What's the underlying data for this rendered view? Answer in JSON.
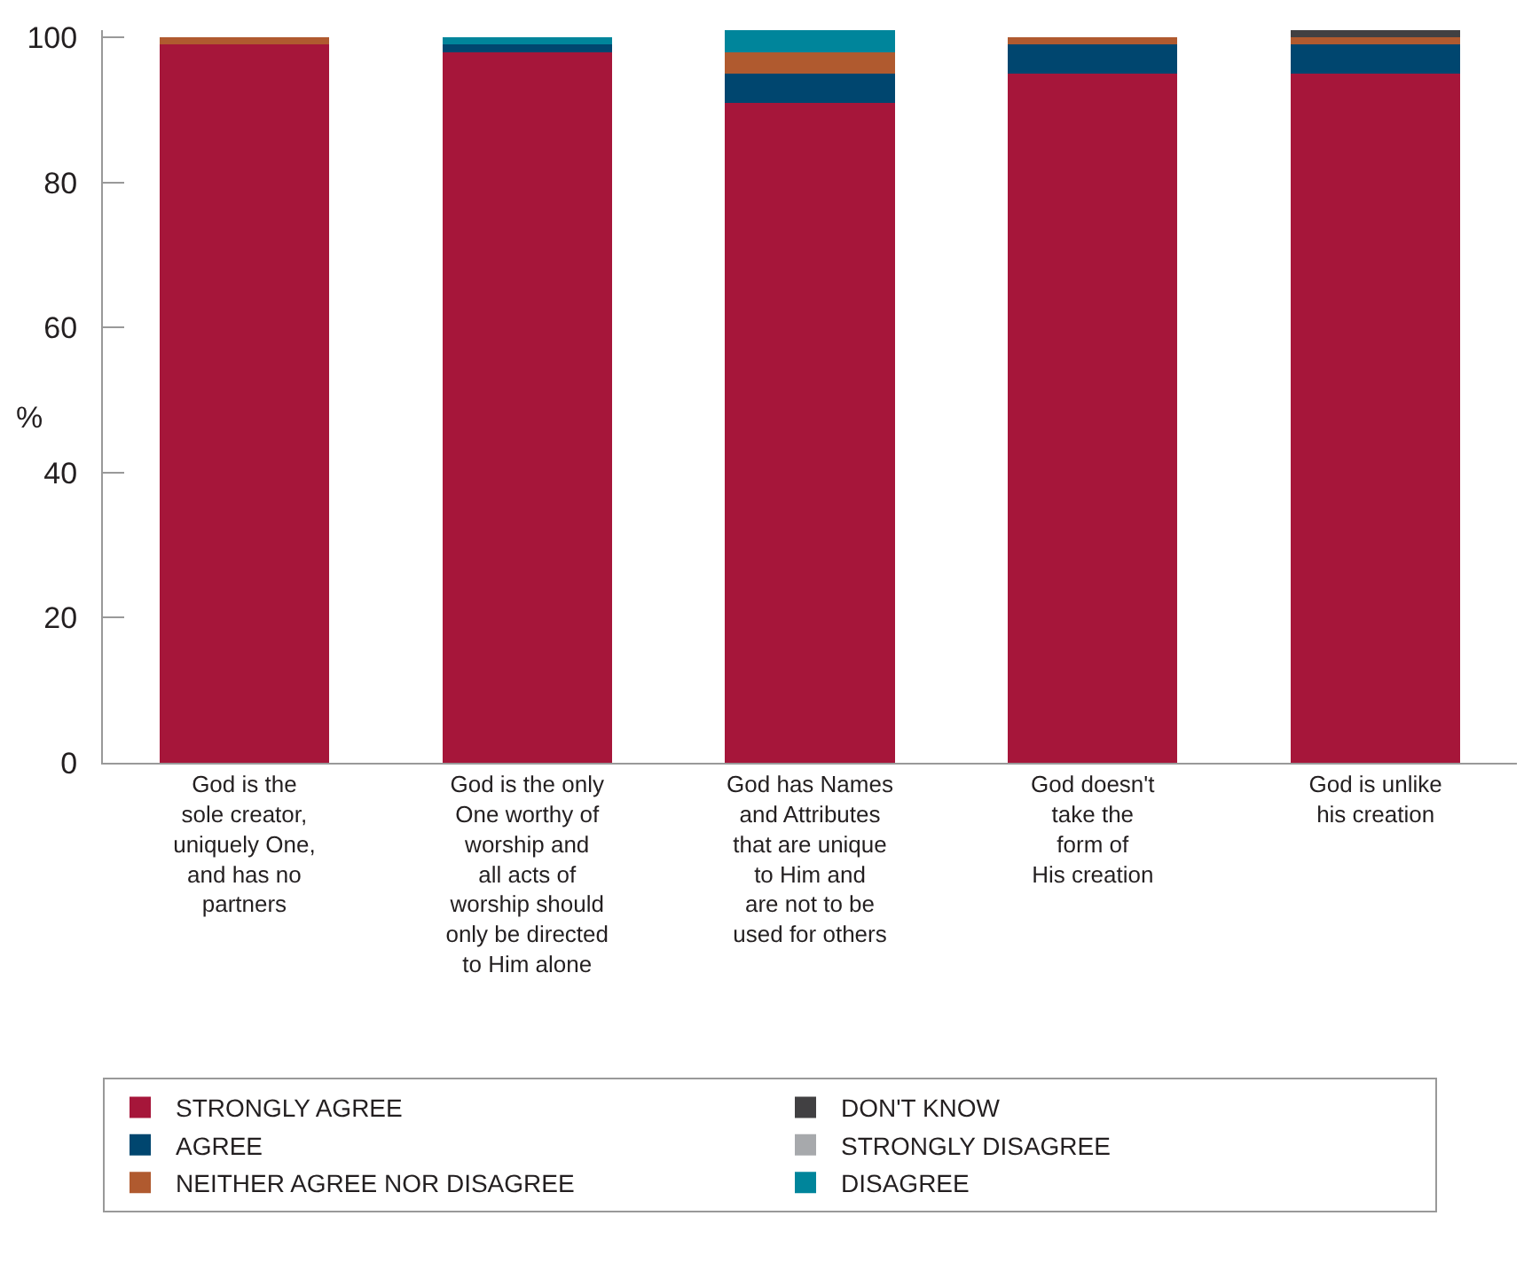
{
  "chart_data": {
    "type": "bar",
    "stacked": true,
    "ylabel": "%",
    "categories": [
      "God is the\nsole creator,\nuniquely One,\nand has no\npartners",
      "God is the only\nOne worthy of\nworship and\nall acts of\nworship should\nonly be directed\nto Him alone",
      "God has Names\nand Attributes\nthat are unique\nto Him and\nare not to be\nused for others",
      "God doesn't\ntake the\nform of\nHis creation",
      "God is unlike\nhis creation"
    ],
    "series": [
      {
        "name": "STRONGLY AGREE",
        "color": "#a6163a",
        "values": [
          99,
          98,
          91,
          95,
          95
        ]
      },
      {
        "name": "AGREE",
        "color": "#00466f",
        "values": [
          0,
          1,
          4,
          4,
          4
        ]
      },
      {
        "name": "NEITHER AGREE NOR DISAGREE",
        "color": "#b05a2f",
        "values": [
          1,
          0,
          3,
          1,
          1
        ]
      },
      {
        "name": "DON'T KNOW",
        "color": "#414042",
        "values": [
          0,
          0,
          0,
          0,
          1
        ]
      },
      {
        "name": "STRONGLY DISAGREE",
        "color": "#a7a9ac",
        "values": [
          0,
          0,
          0,
          0,
          0
        ]
      },
      {
        "name": "DISAGREE",
        "color": "#00859b",
        "values": [
          0,
          1,
          3,
          0,
          0
        ]
      }
    ],
    "ylim": [
      0,
      101
    ],
    "yticks": [
      0,
      20,
      40,
      60,
      80,
      100
    ],
    "legend": "bottom"
  }
}
